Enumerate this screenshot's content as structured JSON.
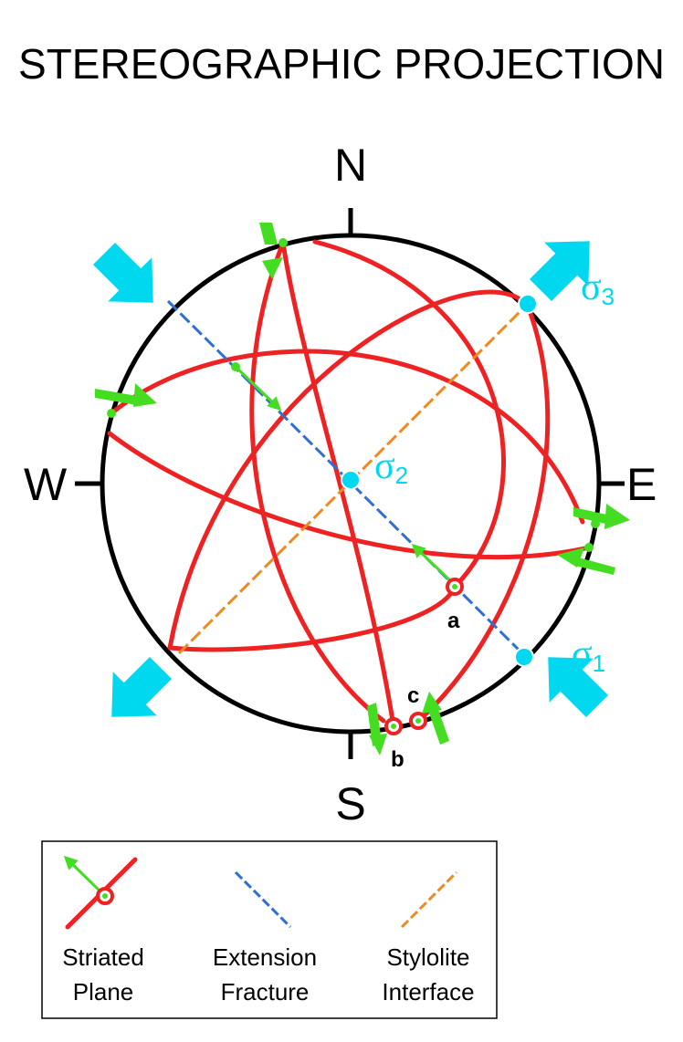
{
  "title": "STEREOGRAPHIC PROJECTION",
  "compass": {
    "north": "N",
    "south": "S",
    "east": "E",
    "west": "W"
  },
  "stresses": {
    "sigma1": {
      "symbol": "σ",
      "index": "1"
    },
    "sigma2": {
      "symbol": "σ",
      "index": "2"
    },
    "sigma3": {
      "symbol": "σ",
      "index": "3"
    }
  },
  "points": {
    "a": "a",
    "b": "b",
    "c": "c"
  },
  "legend": {
    "striated_plane": {
      "line1": "Striated",
      "line2": "Plane"
    },
    "extension_fracture": {
      "line1": "Extension",
      "line2": "Fracture"
    },
    "stylolite_interface": {
      "line1": "Stylolite",
      "line2": "Interface"
    }
  },
  "colors": {
    "great_circle": "#ee2222",
    "striation_arrow": "#44dd22",
    "extension_fracture": "#2f6fd0",
    "stylolite": "#ee8a22",
    "stress_axis": "#00d8f0",
    "outline": "#000000"
  }
}
